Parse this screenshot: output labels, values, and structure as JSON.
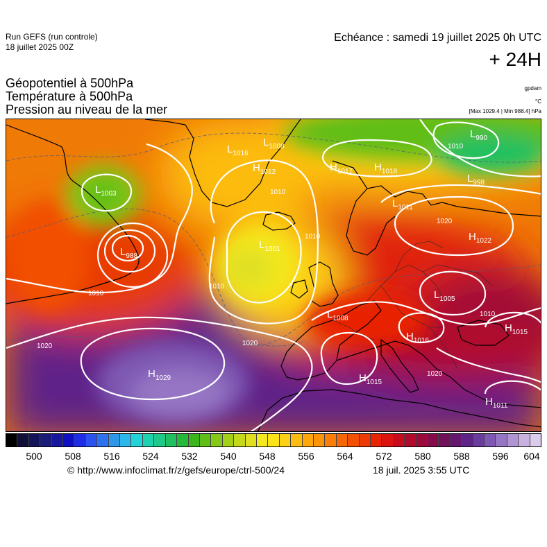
{
  "header": {
    "run_title": "Run GEFS (run controle)",
    "run_date": "18 juillet 2025 00Z",
    "echeance": "Echéance : samedi 19 juillet 2025 0h UTC",
    "leadtime": "+ 24H"
  },
  "parameters": [
    "Géopotentiel à 500hPa",
    "Température à 500hPa",
    "Pression au niveau de la mer"
  ],
  "units": {
    "geopotential": "gpdam",
    "temperature": "°C",
    "pressure": "[Max 1029.4 | Min 988.4] hPa"
  },
  "map": {
    "pressure_systems": [
      {
        "type": "L",
        "value": "1016"
      },
      {
        "type": "L",
        "value": "1008"
      },
      {
        "type": "H",
        "value": "1012"
      },
      {
        "type": "H",
        "value": "1017"
      },
      {
        "type": "H",
        "value": "1018"
      },
      {
        "type": "L",
        "value": "990"
      },
      {
        "type": "L",
        "value": "998"
      },
      {
        "type": "L",
        "value": "1003"
      },
      {
        "type": "L",
        "value": "988"
      },
      {
        "type": "L",
        "value": "1001"
      },
      {
        "type": "L",
        "value": "1011"
      },
      {
        "type": "H",
        "value": "1022"
      },
      {
        "type": "L",
        "value": "1005"
      },
      {
        "type": "L",
        "value": "1008"
      },
      {
        "type": "H",
        "value": "1016"
      },
      {
        "type": "H",
        "value": "1015"
      },
      {
        "type": "H",
        "value": "1029"
      },
      {
        "type": "H",
        "value": "1015"
      },
      {
        "type": "H",
        "value": "1011"
      }
    ],
    "isobar_labels": [
      "1010",
      "1010",
      "1010",
      "1010",
      "1020",
      "1020",
      "1020",
      "1020",
      "1010",
      "1010"
    ],
    "colors": {
      "isobar": "#ffffff",
      "coast": "#000000"
    }
  },
  "colorbar": {
    "tick_labels": [
      "500",
      "508",
      "516",
      "524",
      "532",
      "540",
      "548",
      "556",
      "564",
      "572",
      "580",
      "588",
      "596",
      "604"
    ],
    "colors": [
      "#000000",
      "#0f0f38",
      "#14145a",
      "#1b1b7a",
      "#18189c",
      "#1010c0",
      "#1e2ee6",
      "#2c52f2",
      "#2f72f0",
      "#2f96e8",
      "#2cb8e8",
      "#22d4d8",
      "#1ed2b0",
      "#1ec98a",
      "#20c060",
      "#26b838",
      "#3cb41c",
      "#60be18",
      "#84c818",
      "#a4d018",
      "#c4d81c",
      "#e0e020",
      "#f4e81e",
      "#fce418",
      "#fcd014",
      "#fcbc10",
      "#fca80c",
      "#fc940a",
      "#fa7e08",
      "#f66806",
      "#f25004",
      "#ee3a04",
      "#e82404",
      "#dc1410",
      "#c80c1e",
      "#b20a2c",
      "#9a0a3a",
      "#840c4a",
      "#72105c",
      "#661870",
      "#5e2488",
      "#6a3c9e",
      "#7e58b2",
      "#9676c4",
      "#b094d4",
      "#c8b0e0",
      "#dcccec"
    ]
  },
  "footer": {
    "copyright": "© http://www.infoclimat.fr/z/gefs/europe/ctrl-500/24",
    "generated": "18 juil. 2025  3:55 UTC"
  }
}
